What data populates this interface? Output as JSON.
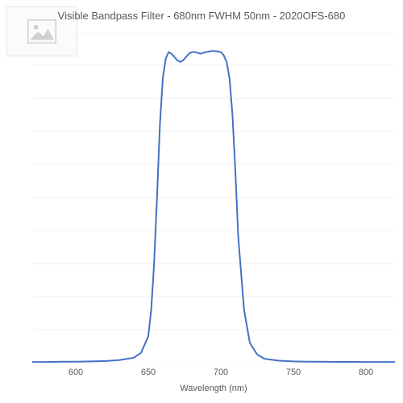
{
  "title": "Visible Bandpass Filter - 680nm FWHM 50nm - 2020OFS-680",
  "axis": {
    "xlabel": "Wavelength (nm)",
    "xlim": [
      570,
      820
    ],
    "x_ticks": [
      600,
      650,
      700,
      750,
      800
    ],
    "ylim": [
      0,
      100
    ]
  },
  "chart": {
    "type": "line",
    "background_color": "#ffffff",
    "grid_color": "#f0f0f0",
    "grid_y_steps": 10,
    "title_fontsize": 13,
    "title_color": "#595959",
    "tick_fontsize": 11,
    "tick_color": "#595959",
    "label_fontsize": 11,
    "series_color": "#4472c4",
    "line_width": 2
  },
  "series": {
    "wavelength_nm": [
      570,
      580,
      590,
      600,
      610,
      620,
      630,
      640,
      645,
      650,
      652,
      654,
      656,
      658,
      660,
      662,
      664,
      666,
      668,
      670,
      672,
      674,
      676,
      678,
      680,
      682,
      684,
      686,
      688,
      690,
      692,
      694,
      696,
      698,
      700,
      702,
      704,
      706,
      708,
      710,
      712,
      716,
      720,
      725,
      730,
      740,
      750,
      760,
      770,
      780,
      790,
      800,
      810,
      820
    ],
    "transmission_pct": [
      0.2,
      0.2,
      0.3,
      0.3,
      0.4,
      0.5,
      0.8,
      1.5,
      3,
      8,
      16,
      30,
      50,
      72,
      86,
      92,
      94,
      93.5,
      92.5,
      91.5,
      91,
      91.5,
      92.5,
      93.5,
      94,
      94,
      93.8,
      93.5,
      93.8,
      94,
      94.2,
      94.3,
      94.3,
      94.2,
      94,
      93,
      91,
      86,
      75,
      58,
      38,
      16,
      6,
      2.5,
      1.2,
      0.6,
      0.4,
      0.3,
      0.3,
      0.25,
      0.25,
      0.2,
      0.2,
      0.2
    ]
  },
  "placeholder": {
    "fill": "#d0d0d0",
    "bg": "#fbfbfb",
    "border": "#e6e6e6"
  }
}
